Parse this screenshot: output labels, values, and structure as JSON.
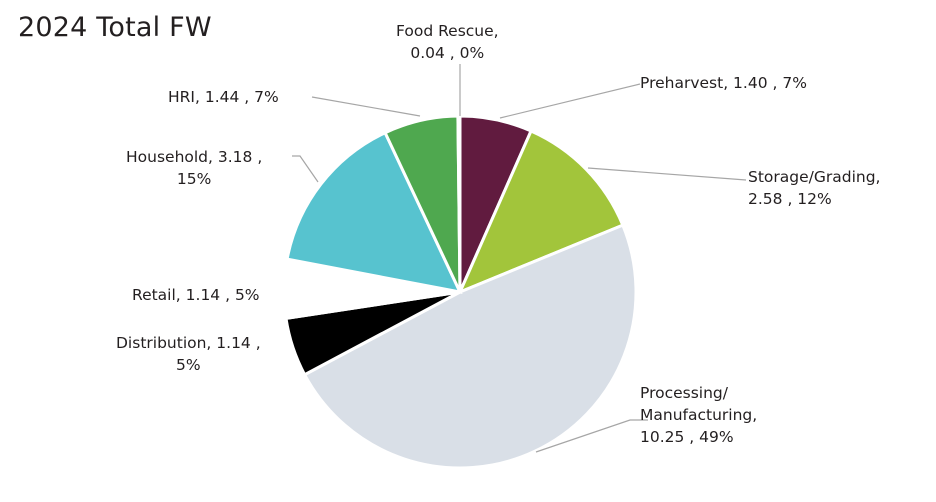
{
  "chart_data": {
    "type": "pie",
    "title": "2024 Total FW",
    "start_angle_deg": 0,
    "direction": "clockwise",
    "slices": [
      {
        "name": "Preharvest",
        "value": 1.4,
        "percent": "7%",
        "color": "#611b3f",
        "label_lines": [
          "Preharvest,  1.40 , 7%"
        ]
      },
      {
        "name": "Storage/Grading",
        "value": 2.58,
        "percent": "12%",
        "color": "#a2c53b",
        "label_lines": [
          "Storage/Grading,",
          "2.58 , 12%"
        ]
      },
      {
        "name": "Processing/Manufacturing",
        "value": 10.25,
        "percent": "49%",
        "color": "#d9dfe7",
        "label_lines": [
          "Processing/",
          "Manufacturing,",
          "10.25 , 49%"
        ]
      },
      {
        "name": "Distribution",
        "value": 1.14,
        "percent": "5%",
        "color": "#000000",
        "label_lines": [
          "Distribution,  1.14 ,",
          "5%"
        ]
      },
      {
        "name": "Retail",
        "value": 1.14,
        "percent": "5%",
        "color": "#ffffff",
        "label_lines": [
          "Retail,  1.14 , 5%"
        ]
      },
      {
        "name": "Household",
        "value": 3.18,
        "percent": "15%",
        "color": "#57c3cf",
        "label_lines": [
          "Household,  3.18 ,",
          "15%"
        ]
      },
      {
        "name": "HRI",
        "value": 1.44,
        "percent": "7%",
        "color": "#4fa84f",
        "label_lines": [
          "HRI,  1.44 , 7%"
        ]
      },
      {
        "name": "Food Rescue",
        "value": 0.04,
        "percent": "0%",
        "color": "#4fa84f",
        "label_lines": [
          "Food Rescue,",
          "0.04 , 0%"
        ]
      }
    ],
    "legend": "none",
    "data_labels": "outside with leader lines"
  }
}
